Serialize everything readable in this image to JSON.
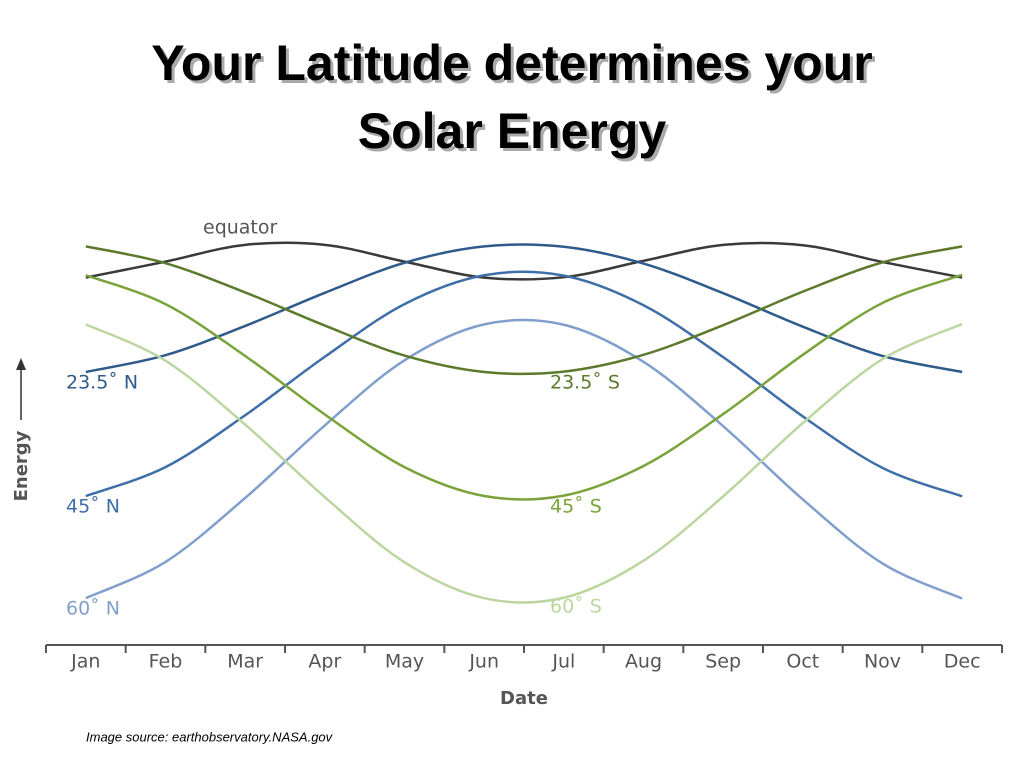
{
  "title": [
    "Your Latitude determines your",
    "Solar Energy"
  ],
  "chart_data": {
    "type": "line",
    "y_label": "Energy",
    "x_label": "Date",
    "categories": [
      "Jan",
      "Feb",
      "Mar",
      "Apr",
      "May",
      "Jun",
      "Jul",
      "Aug",
      "Sep",
      "Oct",
      "Nov",
      "Dec"
    ],
    "ylim": [
      0,
      100
    ],
    "series": [
      {
        "name": "equator",
        "color": "#3a3a3a",
        "values": [
          87.8,
          91.9,
          96.2,
          96.2,
          91.9,
          87.8,
          87.9,
          92.1,
          96.2,
          96.1,
          91.8,
          87.8
        ]
      },
      {
        "name": "23.5˚ N",
        "color": "#2f5a8c",
        "values": [
          63.6,
          67.9,
          75.4,
          83.9,
          91.6,
          95.8,
          95.7,
          91.4,
          83.8,
          75.2,
          67.7,
          63.6
        ]
      },
      {
        "name": "45˚ N",
        "color": "#3f6fa8",
        "values": [
          31.8,
          39.2,
          52.5,
          67.5,
          81.0,
          88.4,
          88.3,
          80.7,
          67.4,
          52.2,
          39.0,
          31.7
        ]
      },
      {
        "name": "60˚ N",
        "color": "#809fcc",
        "values": [
          5.6,
          14.9,
          31.3,
          49.9,
          66.6,
          75.8,
          75.7,
          66.2,
          49.7,
          30.9,
          14.5,
          5.5
        ]
      },
      {
        "name": "23.5˚ S",
        "color": "#5c7a2c",
        "values": [
          95.8,
          91.5,
          84.0,
          75.5,
          67.8,
          63.6,
          63.7,
          68.0,
          75.6,
          84.2,
          91.7,
          95.8
        ]
      },
      {
        "name": "45˚ S",
        "color": "#7aa33c",
        "values": [
          88.4,
          81.0,
          67.7,
          52.7,
          39.2,
          31.8,
          31.9,
          39.5,
          52.8,
          68.0,
          81.3,
          88.5
        ]
      },
      {
        "name": "60˚ S",
        "color": "#bcd6a0",
        "values": [
          75.8,
          66.5,
          50.1,
          31.5,
          14.8,
          5.6,
          5.7,
          15.2,
          31.7,
          50.5,
          66.9,
          75.9
        ]
      }
    ]
  },
  "source": "Image source: earthobservatory.NASA.gov"
}
